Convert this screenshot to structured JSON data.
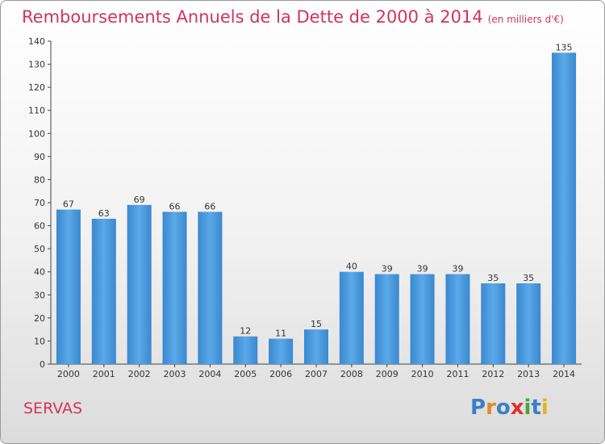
{
  "title": "Remboursements Annuels de la Dette de 2000 à 2014",
  "unit": "(en milliers d'€)",
  "place": "SERVAS",
  "logo": {
    "letters": [
      "P",
      "r",
      "o",
      "x",
      "i",
      "t",
      "i"
    ],
    "colors": [
      "#3a7fc8",
      "#e28a25",
      "#3a7fc8",
      "#d9342b",
      "#4aa53a",
      "#3a7fc8",
      "#e2b325"
    ]
  },
  "chart_data": {
    "type": "bar",
    "title": "Remboursements Annuels de la Dette de 2000 à 2014",
    "xlabel": "",
    "ylabel": "",
    "categories": [
      "2000",
      "2001",
      "2002",
      "2003",
      "2004",
      "2005",
      "2006",
      "2007",
      "2008",
      "2009",
      "2010",
      "2011",
      "2012",
      "2013",
      "2014"
    ],
    "values": [
      67,
      63,
      69,
      66,
      66,
      12,
      11,
      15,
      40,
      39,
      39,
      39,
      35,
      35,
      135
    ],
    "ylim": [
      0,
      140
    ],
    "yticks": [
      0,
      10,
      20,
      30,
      40,
      50,
      60,
      70,
      80,
      90,
      100,
      110,
      120,
      130,
      140
    ],
    "grid": false,
    "bar_color": "#4a97d9"
  }
}
